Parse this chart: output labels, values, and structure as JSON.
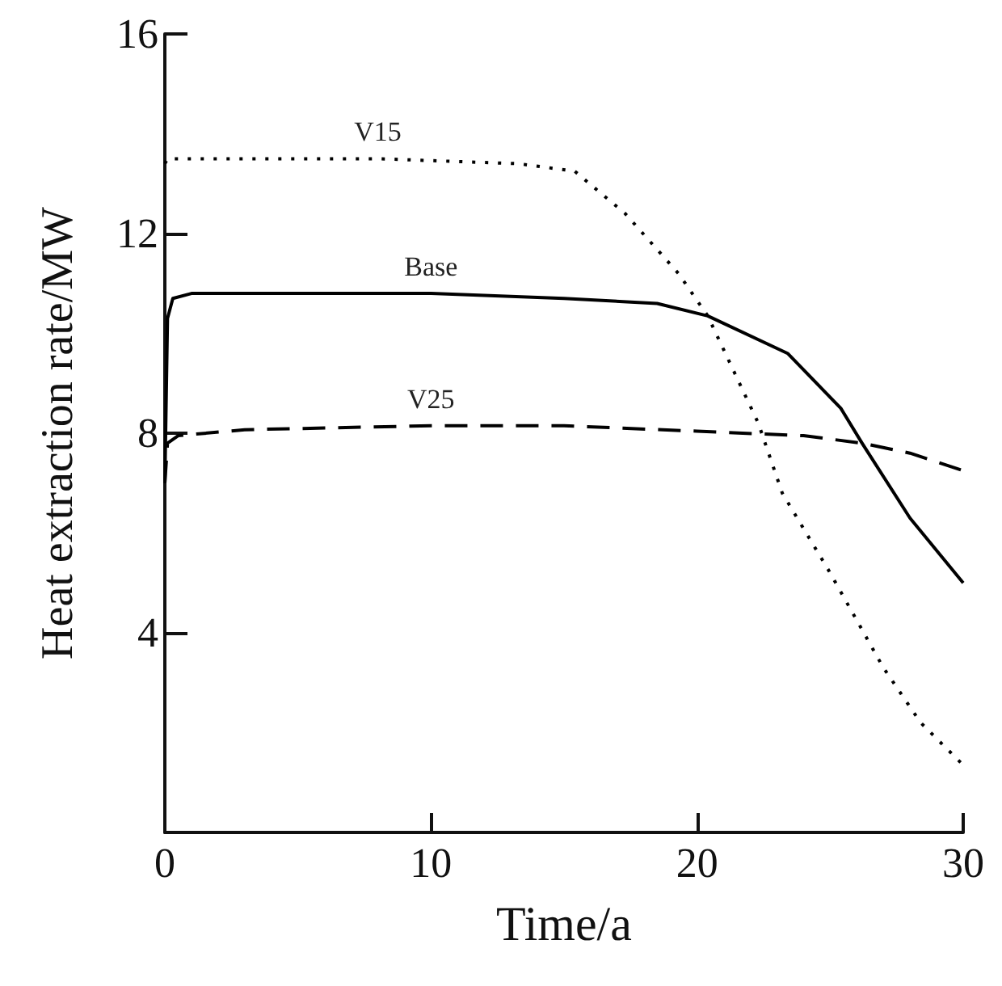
{
  "chart_data": {
    "type": "line",
    "xlabel": "Time/a",
    "ylabel": "Heat extraction rate/MW",
    "xlim": [
      0,
      30
    ],
    "ylim": [
      0,
      16
    ],
    "xticks": [
      0,
      10,
      20,
      30
    ],
    "yticks": [
      4,
      8,
      12,
      16
    ],
    "grid": false,
    "legend": false,
    "marker": "none",
    "series": [
      {
        "name": "V15",
        "color": "#000000",
        "line_style": "dotted",
        "x": [
          0,
          0.1,
          3,
          8,
          13.3,
          15.4,
          17.3,
          19.3,
          20.4,
          22.3,
          23.2,
          25.0,
          27.0,
          28.4,
          30
        ],
        "values": [
          13.4,
          13.5,
          13.5,
          13.5,
          13.4,
          13.25,
          12.4,
          11.2,
          10.35,
          8.2,
          6.8,
          5.2,
          3.3,
          2.2,
          1.35
        ]
      },
      {
        "name": "Base",
        "color": "#000000",
        "line_style": "solid",
        "x": [
          0,
          0.1,
          0.3,
          1,
          5,
          10,
          15,
          18.5,
          20.4,
          23.4,
          25.4,
          26.2,
          28,
          30
        ],
        "values": [
          7.0,
          10.3,
          10.7,
          10.8,
          10.8,
          10.8,
          10.7,
          10.6,
          10.35,
          9.6,
          8.5,
          7.8,
          6.3,
          5.0
        ]
      },
      {
        "name": "V25",
        "color": "#000000",
        "line_style": "dashed",
        "x": [
          0,
          0.1,
          0.5,
          3,
          10,
          15,
          20,
          24,
          26.2,
          28,
          30
        ],
        "values": [
          7.0,
          7.8,
          7.95,
          8.07,
          8.15,
          8.15,
          8.04,
          7.95,
          7.8,
          7.6,
          7.25
        ]
      }
    ]
  }
}
